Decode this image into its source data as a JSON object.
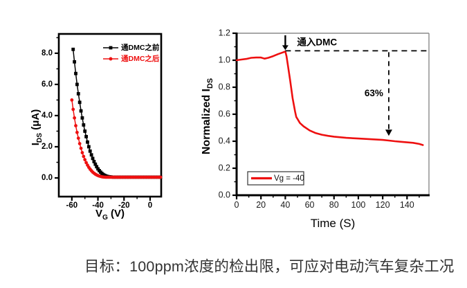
{
  "caption": "目标：100ppm浓度的检出限，可应对电动汽车复杂工况",
  "colors": {
    "red": "#ee1010",
    "black": "#000000",
    "gray_border": "#8a8a8a",
    "tick_text_right": "#1a1a1a",
    "caption_text": "#333333"
  },
  "chart_data": [
    {
      "id": "transfer",
      "type": "line",
      "title": "",
      "xlabel_parts": [
        {
          "t": "V"
        },
        {
          "t": "G",
          "sub": true
        },
        {
          "t": " (V)"
        }
      ],
      "ylabel_parts": [
        {
          "t": "I"
        },
        {
          "t": "DS",
          "sub": true
        },
        {
          "t": " (μA)"
        }
      ],
      "xlim": [
        -70,
        8.5
      ],
      "ylim": [
        -1.2,
        9.24
      ],
      "xticks": [
        {
          "v": -60,
          "label": "-60"
        },
        {
          "v": -40,
          "label": "-40"
        },
        {
          "v": -20,
          "label": "-20"
        },
        {
          "v": 0,
          "label": "0"
        }
      ],
      "yticks": [
        {
          "v": 0,
          "label": "0.0"
        },
        {
          "v": 2,
          "label": "2.0"
        },
        {
          "v": 4,
          "label": "4.0"
        },
        {
          "v": 6,
          "label": "6.0"
        },
        {
          "v": 8,
          "label": "8.0"
        }
      ],
      "minor_xticks": [
        -50,
        -30,
        -10
      ],
      "minor_yticks": [
        1,
        3,
        5,
        7,
        9
      ],
      "legend_position": "top-right",
      "series": [
        {
          "name": "通DMC之前",
          "color": "black",
          "marker": "square",
          "x": [
            -59,
            -58,
            -57,
            -56,
            -55,
            -54,
            -53,
            -52,
            -51,
            -50,
            -49,
            -48,
            -47,
            -46,
            -45,
            -44,
            -43,
            -42,
            -41,
            -40,
            -39,
            -38,
            -37,
            -36,
            -35,
            -34,
            -33,
            -32,
            -31,
            -30,
            -28,
            -26,
            -24,
            -22,
            -20,
            -18,
            -16,
            -14,
            -12,
            -10,
            -8,
            -6,
            -4,
            -2,
            0,
            2,
            4,
            6,
            8
          ],
          "y": [
            8.25,
            7.45,
            6.7,
            6.0,
            5.4,
            4.85,
            4.3,
            3.85,
            3.4,
            3.0,
            2.65,
            2.3,
            2.0,
            1.72,
            1.48,
            1.25,
            1.05,
            0.88,
            0.72,
            0.58,
            0.47,
            0.37,
            0.29,
            0.22,
            0.17,
            0.13,
            0.1,
            0.08,
            0.07,
            0.06,
            0.05,
            0.05,
            0.05,
            0.05,
            0.05,
            0.05,
            0.05,
            0.05,
            0.05,
            0.05,
            0.05,
            0.05,
            0.05,
            0.05,
            0.05,
            0.05,
            0.05,
            0.05,
            0.05
          ]
        },
        {
          "name": "通DMC之后",
          "color": "red",
          "marker": "circle",
          "x": [
            -60,
            -59,
            -58,
            -57,
            -56,
            -55,
            -54,
            -53,
            -52,
            -51,
            -50,
            -49,
            -48,
            -47,
            -46,
            -45,
            -44,
            -43,
            -42,
            -41,
            -40,
            -39,
            -38,
            -37,
            -36,
            -35,
            -34,
            -33,
            -32,
            -31,
            -30,
            -29,
            -28,
            -27,
            -26,
            -25,
            -24,
            -23,
            -22,
            -21,
            -20,
            -19,
            -18,
            -17,
            -16,
            -15,
            -14,
            -13,
            -12,
            -11,
            -10,
            -9,
            -8,
            -7,
            -6,
            -5,
            -4,
            -3,
            -2,
            -1,
            0,
            1,
            2,
            3,
            4,
            5,
            6,
            7,
            8
          ],
          "y": [
            5.0,
            4.4,
            3.85,
            3.35,
            2.92,
            2.55,
            2.2,
            1.9,
            1.62,
            1.38,
            1.17,
            0.98,
            0.82,
            0.68,
            0.56,
            0.46,
            0.37,
            0.3,
            0.24,
            0.19,
            0.15,
            0.12,
            0.095,
            0.075,
            0.06,
            0.05,
            0.045,
            0.045,
            0.045,
            0.045,
            0.045,
            0.045,
            0.045,
            0.045,
            0.045,
            0.045,
            0.045,
            0.045,
            0.045,
            0.045,
            0.045,
            0.045,
            0.045,
            0.045,
            0.045,
            0.045,
            0.045,
            0.045,
            0.045,
            0.045,
            0.045,
            0.045,
            0.045,
            0.045,
            0.045,
            0.045,
            0.045,
            0.045,
            0.045,
            0.045,
            0.045,
            0.045,
            0.045,
            0.045,
            0.045,
            0.045,
            0.045,
            0.045,
            0.045
          ]
        }
      ]
    },
    {
      "id": "response",
      "type": "line",
      "title": "",
      "xlabel_parts": [
        {
          "t": "Time (S)"
        }
      ],
      "ylabel_parts": [
        {
          "t": "Normalized I"
        },
        {
          "t": "DS",
          "sub": true
        }
      ],
      "xlim": [
        0,
        158
      ],
      "ylim": [
        0,
        1.2
      ],
      "xticks": [
        {
          "v": 0,
          "label": "0"
        },
        {
          "v": 20,
          "label": "20"
        },
        {
          "v": 40,
          "label": "40"
        },
        {
          "v": 60,
          "label": "60"
        },
        {
          "v": 80,
          "label": "80"
        },
        {
          "v": 100,
          "label": "100"
        },
        {
          "v": 120,
          "label": "120"
        },
        {
          "v": 140,
          "label": "140"
        }
      ],
      "yticks": [
        {
          "v": 0,
          "label": "0.0"
        },
        {
          "v": 0.2,
          "label": "0.2"
        },
        {
          "v": 0.4,
          "label": "0.4"
        },
        {
          "v": 0.6,
          "label": "0.6"
        },
        {
          "v": 0.8,
          "label": "0.8"
        },
        {
          "v": 1.0,
          "label": "1.0"
        },
        {
          "v": 1.2,
          "label": "1.2"
        }
      ],
      "minor_xticks": [
        10,
        30,
        50,
        70,
        90,
        110,
        130,
        150
      ],
      "minor_yticks": [
        0.1,
        0.3,
        0.5,
        0.7,
        0.9,
        1.1
      ],
      "legend_position": "bottom-left-boxed",
      "series": [
        {
          "name": "Vg = -40",
          "color": "red",
          "marker": "none",
          "x": [
            0,
            4,
            8,
            12,
            16,
            20,
            23,
            26,
            30,
            34,
            38,
            40,
            41,
            42,
            44,
            46,
            48,
            49,
            50,
            52,
            55,
            60,
            65,
            70,
            75,
            80,
            90,
            100,
            110,
            120,
            125,
            130,
            135,
            140,
            145,
            150,
            153
          ],
          "y": [
            1.0,
            1.005,
            1.01,
            1.018,
            1.02,
            1.02,
            1.012,
            1.018,
            1.03,
            1.045,
            1.058,
            1.065,
            1.03,
            0.97,
            0.85,
            0.72,
            0.62,
            0.58,
            0.565,
            0.535,
            0.51,
            0.48,
            0.46,
            0.448,
            0.44,
            0.434,
            0.425,
            0.42,
            0.415,
            0.41,
            0.405,
            0.4,
            0.396,
            0.392,
            0.388,
            0.38,
            0.372
          ]
        }
      ],
      "annotations": {
        "gas_in_label": "通入DMC",
        "gas_in_time": 40,
        "dash_level": 1.07,
        "drop_label": "63%",
        "drop_arrow_time": 125,
        "drop_arrow_bottom": 0.44
      }
    }
  ]
}
